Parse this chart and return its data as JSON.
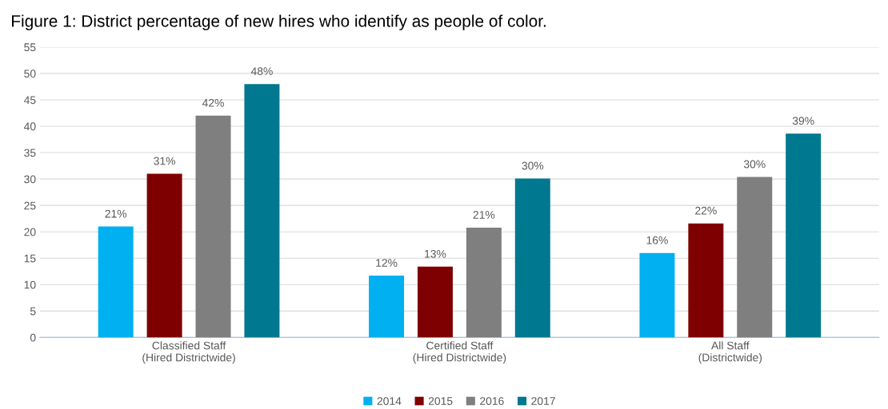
{
  "chart_data": {
    "type": "bar",
    "title": "Figure 1: District percentage of new hires who identify as people of color.",
    "categories": [
      "Classified Staff\n(Hired Districtwide)",
      "Certified Staff\n(Hired Districtwide)",
      "All Staff\n(Districtwide)"
    ],
    "series": [
      {
        "name": "2014",
        "color": "#00b0f0",
        "values": [
          21,
          11.7,
          16
        ],
        "value_labels": [
          "21%",
          "12%",
          "16%"
        ]
      },
      {
        "name": "2015",
        "color": "#7f0000",
        "values": [
          31,
          13.4,
          21.6
        ],
        "value_labels": [
          "31%",
          "13%",
          "22%"
        ]
      },
      {
        "name": "2016",
        "color": "#7f7f7f",
        "values": [
          42,
          20.8,
          30.4
        ],
        "value_labels": [
          "42%",
          "21%",
          "30%"
        ]
      },
      {
        "name": "2017",
        "color": "#00788f",
        "values": [
          48,
          30.1,
          38.6
        ],
        "value_labels": [
          "48%",
          "30%",
          "39%"
        ]
      }
    ],
    "ylim": [
      0,
      55
    ],
    "yticks": [
      0,
      5,
      10,
      15,
      20,
      25,
      30,
      35,
      40,
      45,
      50,
      55
    ],
    "grid": "y",
    "legend": "bottom"
  }
}
